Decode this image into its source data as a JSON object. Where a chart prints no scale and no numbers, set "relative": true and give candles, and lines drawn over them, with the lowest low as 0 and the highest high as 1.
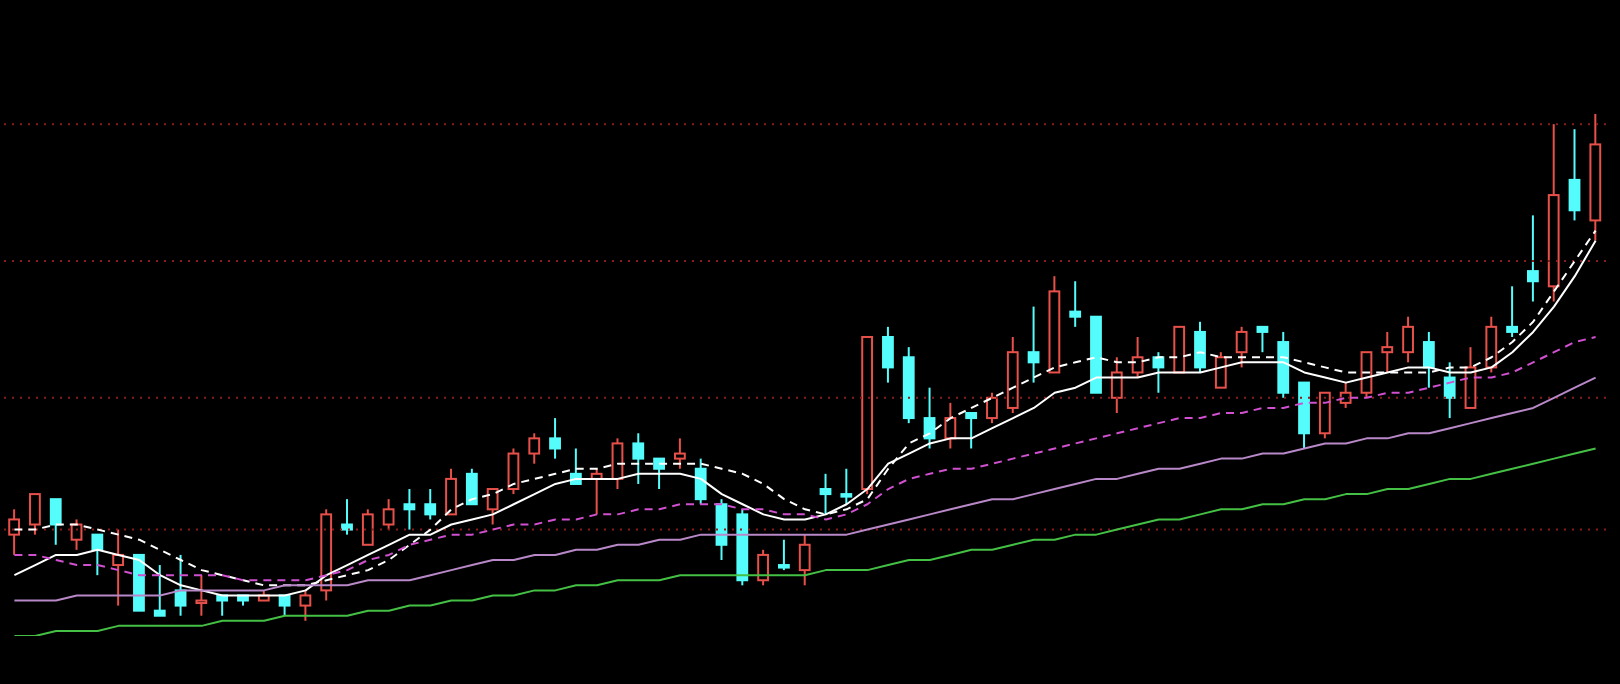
{
  "chart_data": {
    "type": "candlestick",
    "relative": true,
    "marker": "none",
    "ref_lines": [
      {
        "axis": "y",
        "value": 0.98,
        "color": "#8a1c1c",
        "line_style": "dotted"
      },
      {
        "axis": "y",
        "value": 0.71,
        "color": "#8a1c1c",
        "line_style": "dotted"
      },
      {
        "axis": "y",
        "value": 0.44,
        "color": "#8a1c1c",
        "line_style": "dotted"
      },
      {
        "axis": "y",
        "value": 0.18,
        "color": "#8a1c1c",
        "line_style": "dotted"
      }
    ],
    "categories": [
      null,
      null,
      null,
      null,
      null,
      null,
      null,
      null,
      null,
      null,
      null,
      null,
      null,
      null,
      null,
      null,
      null,
      null,
      null,
      null,
      null,
      null,
      null,
      null,
      null,
      null,
      null,
      null,
      null,
      null,
      null,
      null,
      null,
      null,
      null,
      null,
      null,
      null,
      null,
      null,
      null,
      null,
      null,
      null,
      null,
      null,
      null,
      null,
      null,
      null,
      null,
      null,
      null,
      null,
      null,
      null,
      null,
      null,
      null,
      null,
      null,
      null,
      null,
      null,
      null,
      null,
      null,
      null,
      null,
      null,
      null,
      null,
      null,
      null,
      null,
      null,
      null
    ],
    "series": [
      {
        "type": "candlestick",
        "ohlc": [
          [
            0.17,
            0.22,
            0.13,
            0.2
          ],
          [
            0.19,
            0.25,
            0.17,
            0.25
          ],
          [
            0.24,
            0.24,
            0.15,
            0.19
          ],
          [
            0.16,
            0.2,
            0.14,
            0.19
          ],
          [
            0.17,
            0.17,
            0.09,
            0.14
          ],
          [
            0.11,
            0.18,
            0.03,
            0.13
          ],
          [
            0.13,
            0.13,
            0.02,
            0.02
          ],
          [
            0.02,
            0.11,
            0.01,
            0.01
          ],
          [
            0.06,
            0.13,
            0.01,
            0.03
          ],
          [
            0.035,
            0.09,
            0.01,
            0.04
          ],
          [
            0.05,
            0.05,
            0.01,
            0.04
          ],
          [
            0.05,
            0.05,
            0.03,
            0.04
          ],
          [
            0.04,
            0.06,
            0.04,
            0.05
          ],
          [
            0.05,
            0.05,
            0.01,
            0.03
          ],
          [
            0.03,
            0.06,
            0,
            0.05
          ],
          [
            0.06,
            0.22,
            0.04,
            0.21
          ],
          [
            0.19,
            0.24,
            0.17,
            0.18
          ],
          [
            0.15,
            0.22,
            0.15,
            0.21
          ],
          [
            0.19,
            0.24,
            0.18,
            0.22
          ],
          [
            0.23,
            0.26,
            0.18,
            0.22
          ],
          [
            0.23,
            0.26,
            0.2,
            0.21
          ],
          [
            0.21,
            0.3,
            0.21,
            0.28
          ],
          [
            0.29,
            0.3,
            0.23,
            0.23
          ],
          [
            0.22,
            0.26,
            0.19,
            0.26
          ],
          [
            0.26,
            0.34,
            0.25,
            0.33
          ],
          [
            0.33,
            0.37,
            0.31,
            0.36
          ],
          [
            0.36,
            0.4,
            0.32,
            0.34
          ],
          [
            0.29,
            0.34,
            0.27,
            0.27
          ],
          [
            0.28,
            0.3,
            0.21,
            0.29
          ],
          [
            0.28,
            0.36,
            0.26,
            0.35
          ],
          [
            0.35,
            0.37,
            0.27,
            0.32
          ],
          [
            0.32,
            0.32,
            0.26,
            0.3
          ],
          [
            0.32,
            0.36,
            0.3,
            0.33
          ],
          [
            0.3,
            0.32,
            0.23,
            0.24
          ],
          [
            0.23,
            0.24,
            0.12,
            0.15
          ],
          [
            0.21,
            0.22,
            0.07,
            0.08
          ],
          [
            0.08,
            0.14,
            0.07,
            0.13
          ],
          [
            0.11,
            0.16,
            0.1,
            0.105
          ],
          [
            0.1,
            0.17,
            0.07,
            0.15
          ],
          [
            0.26,
            0.29,
            0.21,
            0.25
          ],
          [
            0.25,
            0.3,
            0.23,
            0.245
          ],
          [
            0.26,
            0.56,
            0.25,
            0.56
          ],
          [
            0.56,
            0.58,
            0.47,
            0.5
          ],
          [
            0.52,
            0.54,
            0.39,
            0.4
          ],
          [
            0.4,
            0.46,
            0.34,
            0.36
          ],
          [
            0.36,
            0.43,
            0.34,
            0.4
          ],
          [
            0.41,
            0.41,
            0.34,
            0.4
          ],
          [
            0.4,
            0.45,
            0.39,
            0.44
          ],
          [
            0.42,
            0.56,
            0.41,
            0.53
          ],
          [
            0.53,
            0.62,
            0.47,
            0.51
          ],
          [
            0.49,
            0.68,
            0.49,
            0.65
          ],
          [
            0.61,
            0.67,
            0.58,
            0.6
          ],
          [
            0.6,
            0.6,
            0.45,
            0.45
          ],
          [
            0.44,
            0.52,
            0.41,
            0.49
          ],
          [
            0.49,
            0.56,
            0.48,
            0.52
          ],
          [
            0.52,
            0.53,
            0.45,
            0.5
          ],
          [
            0.49,
            0.58,
            0.49,
            0.58
          ],
          [
            0.57,
            0.59,
            0.49,
            0.5
          ],
          [
            0.46,
            0.53,
            0.46,
            0.52
          ],
          [
            0.53,
            0.58,
            0.5,
            0.57
          ],
          [
            0.58,
            0.58,
            0.53,
            0.57
          ],
          [
            0.55,
            0.57,
            0.44,
            0.45
          ],
          [
            0.47,
            0.47,
            0.34,
            0.37
          ],
          [
            0.37,
            0.45,
            0.36,
            0.45
          ],
          [
            0.43,
            0.47,
            0.42,
            0.45
          ],
          [
            0.45,
            0.53,
            0.44,
            0.53
          ],
          [
            0.53,
            0.57,
            0.49,
            0.54
          ],
          [
            0.53,
            0.6,
            0.51,
            0.58
          ],
          [
            0.55,
            0.57,
            0.46,
            0.5
          ],
          [
            0.48,
            0.51,
            0.4,
            0.44
          ],
          [
            0.42,
            0.54,
            0.42,
            0.5
          ],
          [
            0.5,
            0.6,
            0.49,
            0.58
          ],
          [
            0.58,
            0.66,
            0.56,
            0.57
          ],
          [
            0.69,
            0.8,
            0.63,
            0.67
          ],
          [
            0.66,
            0.98,
            0.63,
            0.84
          ],
          [
            0.87,
            0.97,
            0.79,
            0.81
          ],
          [
            0.79,
            1,
            0.75,
            0.94
          ]
        ],
        "colors": [
          "#e8504a",
          "#e8504a",
          "#54fcfc",
          "#e8504a",
          "#54fcfc",
          "#e8504a",
          "#54fcfc",
          "#54fcfc",
          "#54fcfc",
          "#e8504a",
          "#54fcfc",
          "#54fcfc",
          "#e8504a",
          "#54fcfc",
          "#e8504a",
          "#e8504a",
          "#54fcfc",
          "#e8504a",
          "#e8504a",
          "#54fcfc",
          "#54fcfc",
          "#e8504a",
          "#54fcfc",
          "#e8504a",
          "#e8504a",
          "#e8504a",
          "#54fcfc",
          "#54fcfc",
          "#e8504a",
          "#e8504a",
          "#54fcfc",
          "#54fcfc",
          "#e8504a",
          "#54fcfc",
          "#54fcfc",
          "#54fcfc",
          "#e8504a",
          "#54fcfc",
          "#e8504a",
          "#54fcfc",
          "#54fcfc",
          "#e8504a",
          "#54fcfc",
          "#54fcfc",
          "#54fcfc",
          "#e8504a",
          "#54fcfc",
          "#e8504a",
          "#e8504a",
          "#54fcfc",
          "#e8504a",
          "#54fcfc",
          "#54fcfc",
          "#e8504a",
          "#e8504a",
          "#54fcfc",
          "#e8504a",
          "#54fcfc",
          "#e8504a",
          "#e8504a",
          "#54fcfc",
          "#54fcfc",
          "#54fcfc",
          "#e8504a",
          "#e8504a",
          "#e8504a",
          "#e8504a",
          "#e8504a",
          "#54fcfc",
          "#54fcfc",
          "#e8504a",
          "#e8504a",
          "#54fcfc",
          "#54fcfc",
          "#e8504a",
          "#54fcfc",
          "#e8504a"
        ]
      },
      {
        "type": "line",
        "color": "#ffffff",
        "line_style": "solid",
        "values": [
          0.09,
          0.11,
          0.13,
          0.13,
          0.14,
          0.13,
          0.12,
          0.09,
          0.07,
          0.06,
          0.05,
          0.05,
          0.05,
          0.05,
          0.06,
          0.09,
          0.11,
          0.13,
          0.15,
          0.17,
          0.17,
          0.19,
          0.2,
          0.21,
          0.23,
          0.25,
          0.27,
          0.28,
          0.28,
          0.28,
          0.29,
          0.29,
          0.29,
          0.28,
          0.25,
          0.23,
          0.21,
          0.2,
          0.2,
          0.21,
          0.23,
          0.26,
          0.31,
          0.33,
          0.35,
          0.36,
          0.36,
          0.38,
          0.4,
          0.42,
          0.45,
          0.46,
          0.48,
          0.48,
          0.48,
          0.49,
          0.49,
          0.49,
          0.5,
          0.51,
          0.51,
          0.51,
          0.49,
          0.48,
          0.47,
          0.48,
          0.49,
          0.5,
          0.5,
          0.49,
          0.49,
          0.5,
          0.53,
          0.57,
          0.62,
          0.68,
          0.75
        ]
      },
      {
        "type": "line",
        "color": "#ffffff",
        "line_style": "dashed",
        "values": [
          0.18,
          0.18,
          0.19,
          0.19,
          0.18,
          0.17,
          0.16,
          0.14,
          0.12,
          0.1,
          0.09,
          0.08,
          0.07,
          0.07,
          0.07,
          0.08,
          0.09,
          0.1,
          0.12,
          0.15,
          0.18,
          0.22,
          0.24,
          0.25,
          0.27,
          0.28,
          0.29,
          0.3,
          0.3,
          0.31,
          0.31,
          0.31,
          0.31,
          0.31,
          0.3,
          0.29,
          0.27,
          0.24,
          0.22,
          0.21,
          0.22,
          0.24,
          0.3,
          0.35,
          0.37,
          0.4,
          0.42,
          0.44,
          0.46,
          0.48,
          0.5,
          0.51,
          0.52,
          0.51,
          0.51,
          0.52,
          0.52,
          0.53,
          0.52,
          0.52,
          0.52,
          0.52,
          0.51,
          0.5,
          0.49,
          0.49,
          0.49,
          0.49,
          0.49,
          0.5,
          0.5,
          0.52,
          0.55,
          0.59,
          0.65,
          0.71,
          0.77
        ]
      },
      {
        "type": "line",
        "color": "#d050d0",
        "line_style": "dashed",
        "values": [
          0.13,
          0.13,
          0.12,
          0.11,
          0.11,
          0.1,
          0.09,
          0.09,
          0.09,
          0.09,
          0.09,
          0.08,
          0.08,
          0.08,
          0.08,
          0.09,
          0.1,
          0.12,
          0.13,
          0.15,
          0.16,
          0.17,
          0.17,
          0.18,
          0.19,
          0.19,
          0.2,
          0.2,
          0.21,
          0.21,
          0.22,
          0.22,
          0.23,
          0.23,
          0.23,
          0.22,
          0.22,
          0.21,
          0.21,
          0.2,
          0.21,
          0.23,
          0.26,
          0.28,
          0.29,
          0.3,
          0.3,
          0.31,
          0.32,
          0.33,
          0.34,
          0.35,
          0.36,
          0.37,
          0.38,
          0.39,
          0.4,
          0.4,
          0.41,
          0.41,
          0.42,
          0.42,
          0.43,
          0.43,
          0.44,
          0.44,
          0.45,
          0.45,
          0.46,
          0.47,
          0.48,
          0.48,
          0.49,
          0.51,
          0.53,
          0.55,
          0.56
        ]
      },
      {
        "type": "line",
        "color": "#b888c8",
        "line_style": "solid",
        "values": [
          0.04,
          0.04,
          0.04,
          0.05,
          0.05,
          0.05,
          0.05,
          0.05,
          0.06,
          0.06,
          0.06,
          0.06,
          0.06,
          0.07,
          0.07,
          0.07,
          0.07,
          0.08,
          0.08,
          0.08,
          0.09,
          0.1,
          0.11,
          0.12,
          0.12,
          0.13,
          0.13,
          0.14,
          0.14,
          0.15,
          0.15,
          0.16,
          0.16,
          0.17,
          0.17,
          0.17,
          0.17,
          0.17,
          0.17,
          0.17,
          0.17,
          0.18,
          0.19,
          0.2,
          0.21,
          0.22,
          0.23,
          0.24,
          0.24,
          0.25,
          0.26,
          0.27,
          0.28,
          0.28,
          0.29,
          0.3,
          0.3,
          0.31,
          0.32,
          0.32,
          0.33,
          0.33,
          0.34,
          0.35,
          0.35,
          0.36,
          0.36,
          0.37,
          0.37,
          0.38,
          0.39,
          0.4,
          0.41,
          0.42,
          0.44,
          0.46,
          0.48
        ]
      },
      {
        "type": "line",
        "color": "#44c044",
        "line_style": "solid",
        "values": [
          -0.03,
          -0.03,
          -0.02,
          -0.02,
          -0.02,
          -0.01,
          -0.01,
          -0.01,
          -0.01,
          -0.01,
          0,
          0,
          0,
          0.01,
          0.01,
          0.01,
          0.01,
          0.02,
          0.02,
          0.03,
          0.03,
          0.04,
          0.04,
          0.05,
          0.05,
          0.06,
          0.06,
          0.07,
          0.07,
          0.08,
          0.08,
          0.08,
          0.09,
          0.09,
          0.09,
          0.09,
          0.09,
          0.09,
          0.09,
          0.1,
          0.1,
          0.1,
          0.11,
          0.12,
          0.12,
          0.13,
          0.14,
          0.14,
          0.15,
          0.16,
          0.16,
          0.17,
          0.17,
          0.18,
          0.19,
          0.2,
          0.2,
          0.21,
          0.22,
          0.22,
          0.23,
          0.23,
          0.24,
          0.24,
          0.25,
          0.25,
          0.26,
          0.26,
          0.27,
          0.28,
          0.28,
          0.29,
          0.3,
          0.31,
          0.32,
          0.33,
          0.34
        ]
      }
    ]
  }
}
